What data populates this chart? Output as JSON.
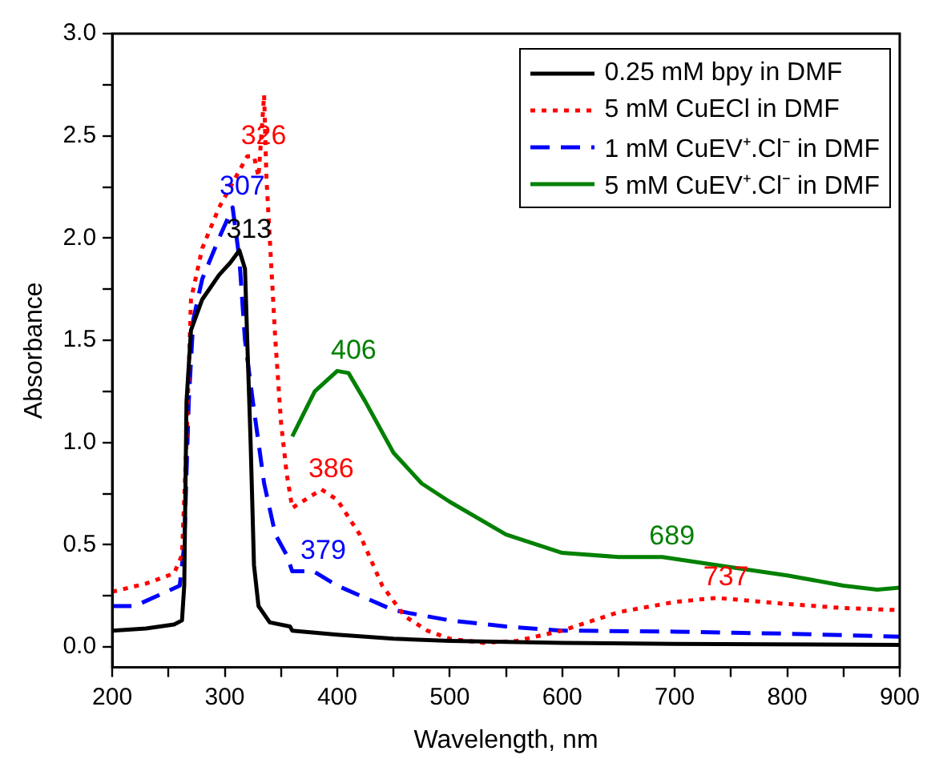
{
  "chart_data": {
    "type": "line",
    "xlabel": "Wavelength, nm",
    "ylabel": "Absorbance",
    "xlim": [
      200,
      900
    ],
    "xticks": [
      200,
      {
        "value": 250,
        "label": null
      },
      300,
      {
        "value": 350,
        "label": null
      },
      400,
      {
        "value": 450,
        "label": null
      },
      500,
      {
        "value": 550,
        "label": null
      },
      600,
      {
        "value": 650,
        "label": null
      },
      700,
      {
        "value": 750,
        "label": null
      },
      800,
      {
        "value": 850,
        "label": null
      },
      900
    ],
    "ylim": [
      -0.1,
      3.0
    ],
    "yticks": [
      "0.0",
      {
        "value": 0.25,
        "label": null
      },
      {
        "value": 0.5,
        "label": "0.5"
      },
      {
        "value": 0.75,
        "label": null
      },
      {
        "value": 1.0,
        "label": "1.0"
      },
      {
        "value": 1.25,
        "label": null
      },
      {
        "value": 1.5,
        "label": "1.5"
      },
      {
        "value": 1.75,
        "label": null
      },
      {
        "value": 2.0,
        "label": "2.0"
      },
      {
        "value": 2.25,
        "label": null
      },
      {
        "value": 2.5,
        "label": "2.5"
      },
      {
        "value": 2.75,
        "label": null
      },
      {
        "value": 3.0,
        "label": "3.0"
      }
    ],
    "grid": false,
    "legend": "top right",
    "marker": "none",
    "series": [
      {
        "name": "0.25 mM bpy in DMF",
        "color": "#000000",
        "line_style": "solid",
        "x": [
          200,
          230,
          255,
          262,
          264,
          266,
          270,
          280,
          295,
          305,
          313,
          318,
          320,
          323,
          326,
          330,
          340,
          358,
          360,
          400,
          450,
          500,
          600,
          700,
          900
        ],
        "values": [
          0.08,
          0.09,
          0.11,
          0.13,
          0.3,
          1.2,
          1.55,
          1.7,
          1.82,
          1.88,
          1.94,
          1.85,
          1.5,
          1.0,
          0.4,
          0.2,
          0.12,
          0.1,
          0.08,
          0.06,
          0.04,
          0.03,
          0.02,
          0.015,
          0.01
        ]
      },
      {
        "name": "5 mM CuECl in DMF",
        "color": "#ff0000",
        "line_style": "dotted",
        "x": [
          200,
          230,
          255,
          262,
          266,
          270,
          280,
          295,
          310,
          320,
          326,
          330,
          335,
          337,
          340,
          345,
          350,
          355,
          360,
          386,
          400,
          420,
          440,
          460,
          480,
          500,
          530,
          560,
          600,
          650,
          700,
          737,
          800,
          850,
          900
        ],
        "values": [
          0.27,
          0.31,
          0.36,
          0.45,
          1.0,
          1.7,
          1.95,
          2.15,
          2.3,
          2.4,
          2.4,
          2.3,
          2.7,
          2.3,
          2.0,
          1.5,
          1.1,
          0.85,
          0.68,
          0.77,
          0.72,
          0.55,
          0.3,
          0.15,
          0.08,
          0.04,
          0.02,
          0.03,
          0.08,
          0.17,
          0.22,
          0.24,
          0.21,
          0.19,
          0.18
        ]
      },
      {
        "name": "1 mM CuEV⁺.Cl⁻ in DMF",
        "color": "#0000ff",
        "line_style": "dashed",
        "x": [
          200,
          220,
          240,
          260,
          264,
          268,
          272,
          280,
          295,
          307,
          313,
          318,
          325,
          335,
          345,
          355,
          360,
          379,
          400,
          450,
          500,
          550,
          600,
          700,
          800,
          900
        ],
        "values": [
          0.2,
          0.2,
          0.25,
          0.3,
          0.5,
          1.2,
          1.6,
          1.8,
          2.0,
          2.15,
          1.9,
          1.5,
          1.2,
          0.8,
          0.55,
          0.45,
          0.37,
          0.37,
          0.3,
          0.18,
          0.13,
          0.1,
          0.08,
          0.075,
          0.065,
          0.05
        ]
      },
      {
        "name": "5 mM CuEV⁺.Cl⁻ in DMF",
        "color": "#008000",
        "line_style": "solid",
        "x": [
          360,
          380,
          400,
          410,
          425,
          450,
          475,
          500,
          550,
          600,
          650,
          689,
          750,
          800,
          850,
          880,
          900
        ],
        "values": [
          1.03,
          1.25,
          1.35,
          1.34,
          1.2,
          0.95,
          0.8,
          0.71,
          0.55,
          0.46,
          0.44,
          0.44,
          0.39,
          0.35,
          0.3,
          0.28,
          0.29
        ]
      }
    ],
    "annotations": [
      {
        "text": "326",
        "x": 326,
        "y": 2.4
      },
      {
        "text": "307",
        "x": 307,
        "y": 2.15
      },
      {
        "text": "313",
        "x": 313,
        "y": 1.94
      },
      {
        "text": "406",
        "x": 406,
        "y": 1.35
      },
      {
        "text": "386",
        "x": 386,
        "y": 0.77
      },
      {
        "text": "379",
        "x": 379,
        "y": 0.37
      },
      {
        "text": "689",
        "x": 689,
        "y": 0.44
      },
      {
        "text": "737",
        "x": 737,
        "y": 0.24
      }
    ]
  }
}
